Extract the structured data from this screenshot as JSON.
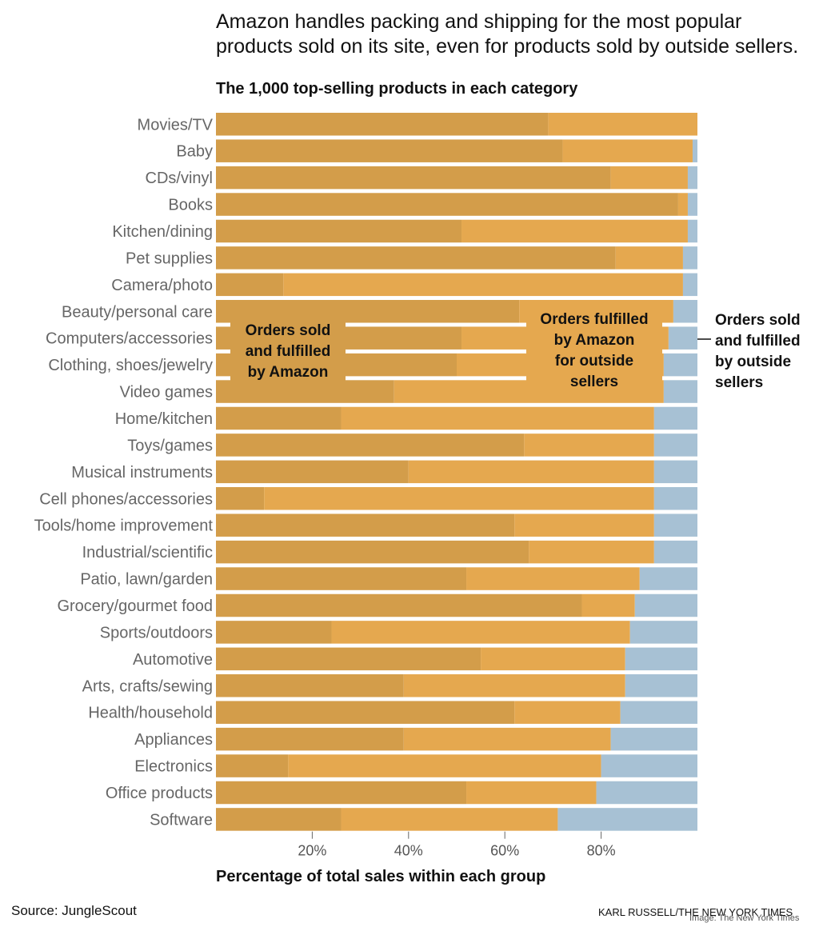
{
  "headline": {
    "line1": "Amazon handles packing and shipping for the most popular",
    "line2": "products sold on its site, even for products sold by outside sellers."
  },
  "chart_data": {
    "type": "bar",
    "stacked": true,
    "orientation": "horizontal",
    "title": "The 1,000 top-selling products in each category",
    "xlabel": "Percentage of total sales within each group",
    "ylabel": "",
    "xlim": [
      0,
      100
    ],
    "xticks": [
      20,
      40,
      60,
      80
    ],
    "xtick_labels": [
      "20%",
      "40%",
      "60%",
      "80%"
    ],
    "categories": [
      "Movies/TV",
      "Baby",
      "CDs/vinyl",
      "Books",
      "Kitchen/dining",
      "Pet supplies",
      "Camera/photo",
      "Beauty/personal care",
      "Computers/accessories",
      "Clothing, shoes/jewelry",
      "Video games",
      "Home/kitchen",
      "Toys/games",
      "Musical instruments",
      "Cell phones/accessories",
      "Tools/home improvement",
      "Industrial/scientific",
      "Patio, lawn/garden",
      "Grocery/gourmet food",
      "Sports/outdoors",
      "Automotive",
      "Arts, crafts/sewing",
      "Health/household",
      "Appliances",
      "Electronics",
      "Office products",
      "Software"
    ],
    "series": [
      {
        "name": "Orders sold and fulfilled by Amazon",
        "color": "#d39d4a",
        "values": [
          69,
          72,
          82,
          96,
          51,
          83,
          14,
          63,
          51,
          50,
          37,
          26,
          64,
          40,
          10,
          62,
          65,
          52,
          76,
          24,
          55,
          39,
          62,
          39,
          15,
          52,
          26
        ]
      },
      {
        "name": "Orders fulfilled by Amazon for outside sellers",
        "color": "#e5a84f",
        "values": [
          31,
          27,
          16,
          2,
          47,
          14,
          83,
          32,
          43,
          43,
          56,
          65,
          27,
          51,
          81,
          29,
          26,
          36,
          11,
          62,
          30,
          46,
          22,
          43,
          65,
          27,
          45
        ]
      },
      {
        "name": "Orders sold and fulfilled by outside sellers",
        "color": "#a7c1d4",
        "values": [
          0,
          1,
          2,
          2,
          2,
          3,
          3,
          5,
          6,
          7,
          7,
          9,
          9,
          9,
          9,
          9,
          9,
          12,
          13,
          14,
          15,
          15,
          16,
          18,
          20,
          21,
          29
        ]
      }
    ],
    "annotations": {
      "amazon": [
        "Orders sold",
        "and fulfilled",
        "by Amazon"
      ],
      "fba": [
        "Orders fulfilled",
        "by Amazon",
        "for outside",
        "sellers"
      ],
      "outside": [
        "Orders sold",
        "and fulfilled",
        "by outside",
        "sellers"
      ]
    }
  },
  "footer": {
    "source": "Source: JungleScout",
    "credit": "KARL RUSSELL/THE NEW YORK TIMES",
    "watermark": "Image: The New York Times"
  }
}
